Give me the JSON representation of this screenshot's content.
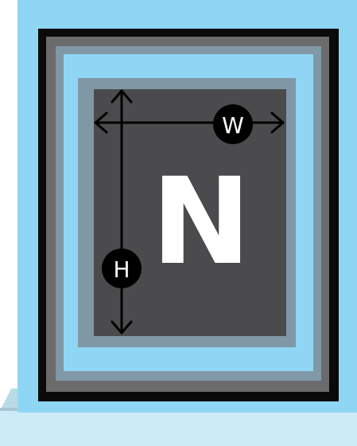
{
  "diagram": {
    "center_label": "N",
    "width_badge": "W",
    "height_badge": "H"
  },
  "colors": {
    "wall": "#8fd6f4",
    "sill": "#cdebf7",
    "sill_shadow": "#a6c6d3",
    "frame_outer": "#0a0a0a",
    "frame_mid": "#6b6b6b",
    "frame_inner": "#7f98a6",
    "glass": "#4b4b4d",
    "arrow": "#000000",
    "badge": "#000000",
    "letter": "#ffffff"
  },
  "icons": {
    "width_arrow": "double-arrow-horizontal",
    "height_arrow": "double-arrow-vertical"
  }
}
